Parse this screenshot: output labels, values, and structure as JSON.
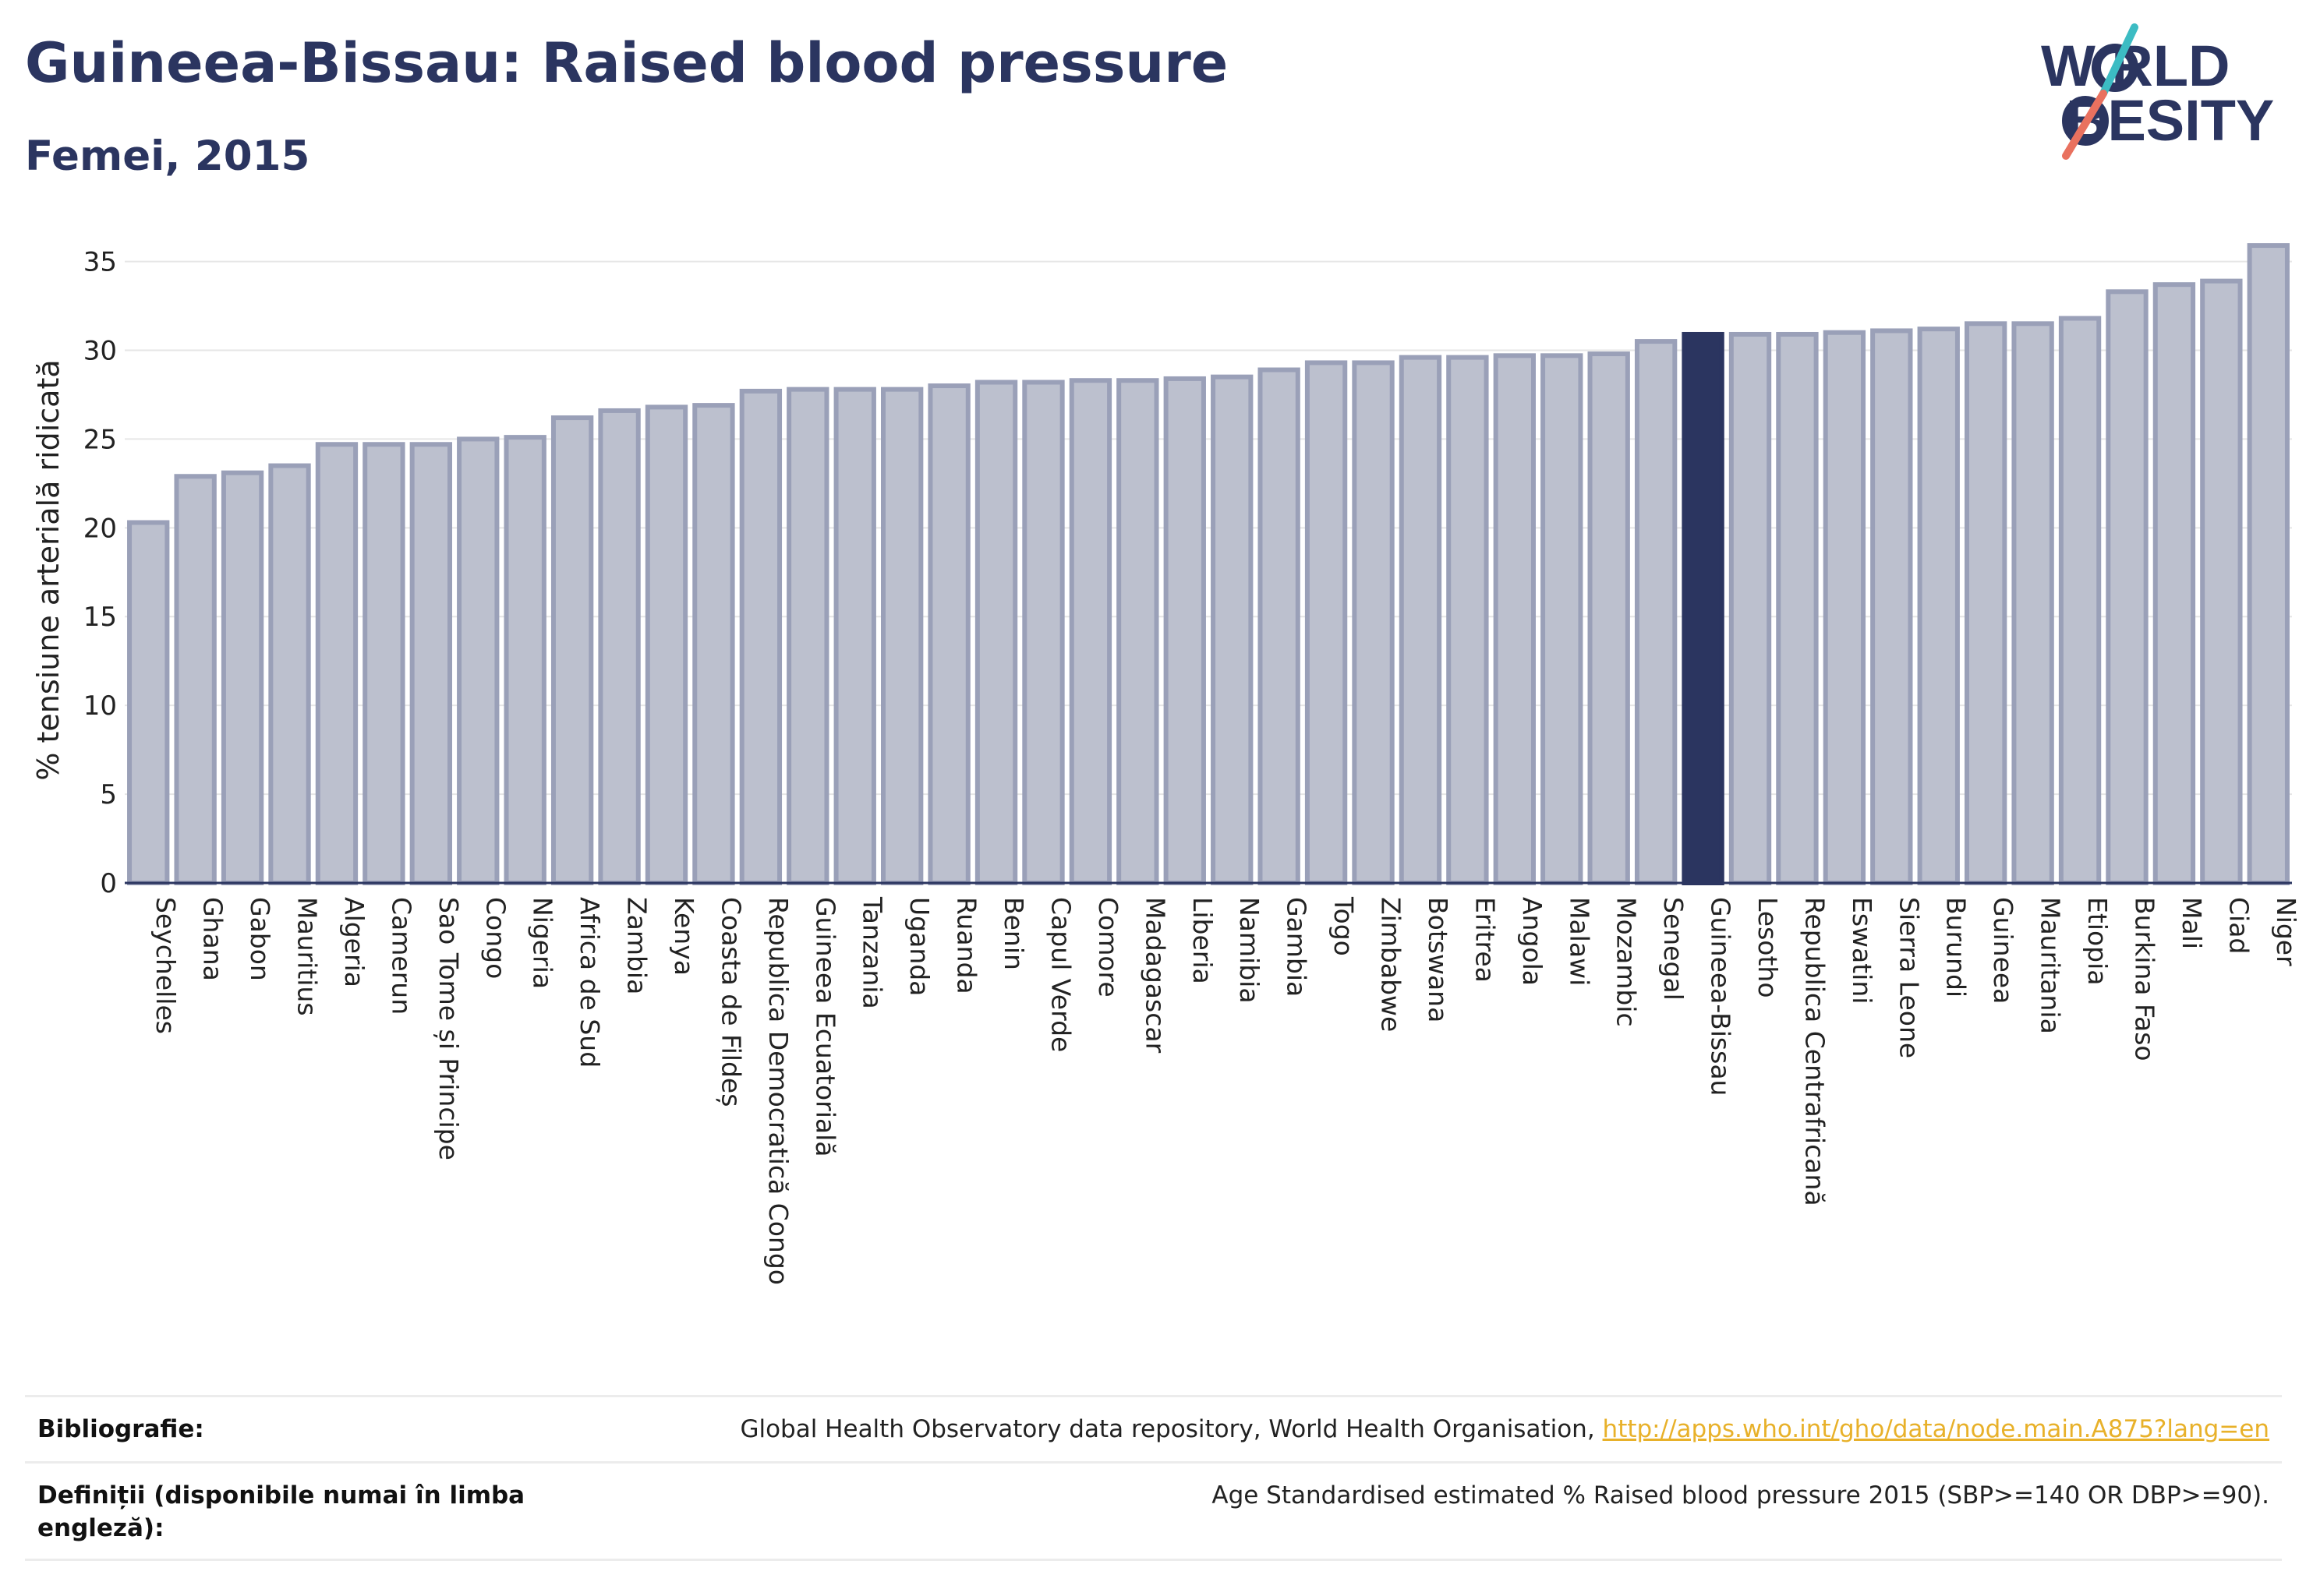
{
  "header": {
    "title": "Guineea-Bissau: Raised blood pressure",
    "subtitle": "Femei, 2015"
  },
  "logo": {
    "line1": "W RLD",
    "line2": "BESITY",
    "text": "WORLD OBESITY",
    "colors": {
      "text": "#2b3560",
      "teal": "#3cbcc3",
      "coral": "#e9715f"
    }
  },
  "chart_data": {
    "type": "bar",
    "title": "Guineea-Bissau: Raised blood pressure",
    "subtitle": "Femei, 2015",
    "ylabel": "% tensiune arterială ridicată",
    "xlabel": "",
    "ylim": [
      0,
      37
    ],
    "yticks": [
      0,
      5,
      10,
      15,
      20,
      25,
      30,
      35
    ],
    "grid": true,
    "highlight": "Guineea-Bissau",
    "colors": {
      "bar": "#bcc0ce",
      "bar_edge": "#9aa0b8",
      "highlight": "#2b3560",
      "grid": "#e6e6e6",
      "axis": "#2b3560"
    },
    "categories": [
      "Seychelles",
      "Ghana",
      "Gabon",
      "Mauritius",
      "Algeria",
      "Camerun",
      "Sao Tome și Principe",
      "Congo",
      "Nigeria",
      "Africa de Sud",
      "Zambia",
      "Kenya",
      "Coasta de Fildeș",
      "Republica Democratică Congo",
      "Guineea Ecuatorială",
      "Tanzania",
      "Uganda",
      "Ruanda",
      "Benin",
      "Capul Verde",
      "Comore",
      "Madagascar",
      "Liberia",
      "Namibia",
      "Gambia",
      "Togo",
      "Zimbabwe",
      "Botswana",
      "Eritrea",
      "Angola",
      "Malawi",
      "Mozambic",
      "Senegal",
      "Guineea-Bissau",
      "Lesotho",
      "Republica Centrafricană",
      "Eswatini",
      "Sierra Leone",
      "Burundi",
      "Guineea",
      "Mauritania",
      "Etiopia",
      "Burkina Faso",
      "Mali",
      "Ciad",
      "Niger"
    ],
    "values": [
      20.3,
      22.9,
      23.1,
      23.5,
      24.7,
      24.7,
      24.7,
      25.0,
      25.1,
      26.2,
      26.6,
      26.8,
      26.9,
      27.7,
      27.8,
      27.8,
      27.8,
      28.0,
      28.2,
      28.2,
      28.3,
      28.3,
      28.4,
      28.5,
      28.9,
      29.3,
      29.3,
      29.6,
      29.6,
      29.7,
      29.7,
      29.8,
      30.5,
      30.9,
      30.9,
      30.9,
      31.0,
      31.1,
      31.2,
      31.5,
      31.5,
      31.8,
      33.3,
      33.7,
      33.9,
      35.9
    ]
  },
  "footer": {
    "bibliography_label": "Bibliografie:",
    "bibliography_text": "Global Health Observatory data repository, World Health Organisation, ",
    "bibliography_link": "http://apps.who.int/gho/data/node.main.A875?lang=en",
    "definitions_label": "Definiții (disponibile numai în limba engleză):",
    "definitions_text": "Age Standardised estimated % Raised blood pressure 2015 (SBP>=140 OR DBP>=90)."
  }
}
